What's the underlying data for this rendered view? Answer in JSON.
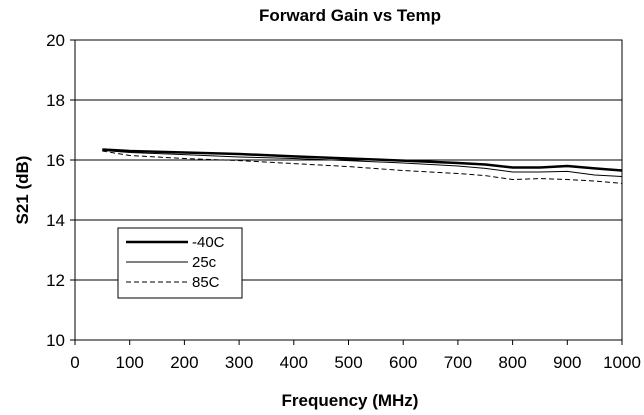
{
  "chart_data": {
    "type": "line",
    "title": "Forward Gain vs Temp",
    "xlabel": "Frequency (MHz)",
    "ylabel": "S21 (dB)",
    "xlim": [
      0,
      1000
    ],
    "ylim": [
      10,
      20
    ],
    "xticks": [
      0,
      100,
      200,
      300,
      400,
      500,
      600,
      700,
      800,
      900,
      1000
    ],
    "yticks": [
      10,
      12,
      14,
      16,
      18,
      20
    ],
    "grid": "horizontal",
    "legend_position": "lower-left",
    "series": [
      {
        "name": "-40C",
        "style": "thick-solid",
        "x": [
          50,
          100,
          200,
          300,
          400,
          500,
          600,
          700,
          750,
          800,
          850,
          900,
          950,
          1000
        ],
        "y": [
          16.35,
          16.3,
          16.25,
          16.2,
          16.12,
          16.05,
          15.98,
          15.9,
          15.85,
          15.75,
          15.75,
          15.8,
          15.72,
          15.65
        ]
      },
      {
        "name": "25c",
        "style": "thin-solid",
        "x": [
          50,
          100,
          200,
          300,
          400,
          500,
          600,
          700,
          750,
          800,
          850,
          900,
          950,
          1000
        ],
        "y": [
          16.32,
          16.25,
          16.18,
          16.1,
          16.05,
          15.98,
          15.9,
          15.8,
          15.72,
          15.6,
          15.6,
          15.62,
          15.5,
          15.45
        ]
      },
      {
        "name": "85C",
        "style": "dashed",
        "x": [
          50,
          100,
          200,
          300,
          400,
          500,
          600,
          700,
          750,
          800,
          850,
          900,
          950,
          1000
        ],
        "y": [
          16.3,
          16.15,
          16.05,
          15.98,
          15.88,
          15.78,
          15.65,
          15.55,
          15.48,
          15.35,
          15.38,
          15.35,
          15.3,
          15.22
        ]
      }
    ]
  }
}
